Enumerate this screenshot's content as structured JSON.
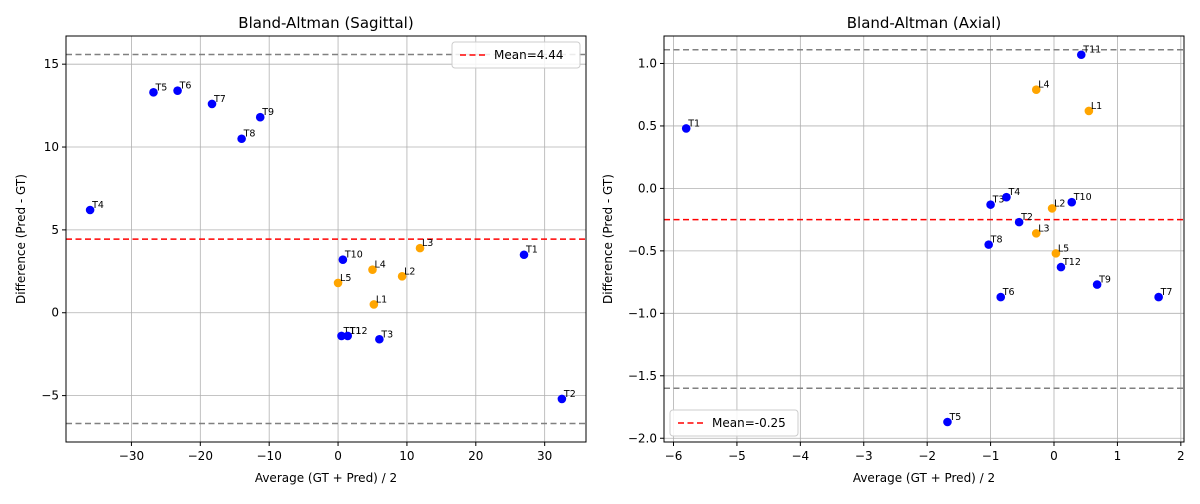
{
  "chart_data": [
    {
      "type": "scatter",
      "title": "Bland-Altman (Sagittal)",
      "xlabel": "Average (GT + Pred) / 2",
      "ylabel": "Difference (Pred - GT)",
      "xlim": [
        -39.5,
        36
      ],
      "ylim": [
        -7.8,
        16.7
      ],
      "xticks": [
        -30,
        -20,
        -10,
        0,
        10,
        20,
        30
      ],
      "yticks": [
        -5,
        0,
        5,
        10,
        15
      ],
      "grid": true,
      "legend": {
        "position": "upper-right",
        "label": "Mean=4.44"
      },
      "mean": 4.44,
      "loa_upper": 15.58,
      "loa_lower": -6.68,
      "colors": {
        "thoracic": "#0000ff",
        "lumbar": "#ffa500",
        "mean": "#ff0000",
        "loa": "#808080"
      },
      "points": [
        {
          "label": "T1",
          "x": 27.0,
          "y": 3.5,
          "group": "thoracic"
        },
        {
          "label": "T2",
          "x": 32.5,
          "y": -5.2,
          "group": "thoracic"
        },
        {
          "label": "T3",
          "x": 6.0,
          "y": -1.6,
          "group": "thoracic"
        },
        {
          "label": "T4",
          "x": -36.0,
          "y": 6.2,
          "group": "thoracic"
        },
        {
          "label": "T5",
          "x": -26.8,
          "y": 13.3,
          "group": "thoracic"
        },
        {
          "label": "T6",
          "x": -23.3,
          "y": 13.4,
          "group": "thoracic"
        },
        {
          "label": "T7",
          "x": -18.3,
          "y": 12.6,
          "group": "thoracic"
        },
        {
          "label": "T8",
          "x": -14.0,
          "y": 10.5,
          "group": "thoracic"
        },
        {
          "label": "T9",
          "x": -11.3,
          "y": 11.8,
          "group": "thoracic"
        },
        {
          "label": "T10",
          "x": 0.7,
          "y": 3.2,
          "group": "thoracic"
        },
        {
          "label": "T11",
          "x": 0.5,
          "y": -1.4,
          "group": "thoracic"
        },
        {
          "label": "T12",
          "x": 1.4,
          "y": -1.4,
          "group": "thoracic"
        },
        {
          "label": "L1",
          "x": 5.2,
          "y": 0.5,
          "group": "lumbar"
        },
        {
          "label": "L2",
          "x": 9.3,
          "y": 2.2,
          "group": "lumbar"
        },
        {
          "label": "L3",
          "x": 11.9,
          "y": 3.9,
          "group": "lumbar"
        },
        {
          "label": "L4",
          "x": 5.0,
          "y": 2.6,
          "group": "lumbar"
        },
        {
          "label": "L5",
          "x": 0.0,
          "y": 1.8,
          "group": "lumbar"
        }
      ]
    },
    {
      "type": "scatter",
      "title": "Bland-Altman (Axial)",
      "xlabel": "Average (GT + Pred) / 2",
      "ylabel": "Difference (Pred - GT)",
      "xlim": [
        -6.15,
        2.05
      ],
      "ylim": [
        -2.03,
        1.22
      ],
      "xticks": [
        -6,
        -5,
        -4,
        -3,
        -2,
        -1,
        0,
        1,
        2
      ],
      "yticks": [
        -2.0,
        -1.5,
        -1.0,
        -0.5,
        0.0,
        0.5,
        1.0
      ],
      "tick_labels_y": [
        "−2.0",
        "−1.5",
        "−1.0",
        "−0.5",
        "0.0",
        "0.5",
        "1.0"
      ],
      "tick_labels_x": [
        "−6",
        "−5",
        "−4",
        "−3",
        "−2",
        "−1",
        "0",
        "1",
        "2"
      ],
      "grid": true,
      "legend": {
        "position": "lower-left",
        "label": "Mean=-0.25"
      },
      "mean": -0.25,
      "loa_upper": 1.11,
      "loa_lower": -1.6,
      "colors": {
        "thoracic": "#0000ff",
        "lumbar": "#ffa500",
        "mean": "#ff0000",
        "loa": "#808080"
      },
      "points": [
        {
          "label": "T1",
          "x": -5.8,
          "y": 0.48,
          "group": "thoracic"
        },
        {
          "label": "T2",
          "x": -0.55,
          "y": -0.27,
          "group": "thoracic"
        },
        {
          "label": "T3",
          "x": -1.0,
          "y": -0.13,
          "group": "thoracic"
        },
        {
          "label": "T4",
          "x": -0.75,
          "y": -0.07,
          "group": "thoracic"
        },
        {
          "label": "T5",
          "x": -1.68,
          "y": -1.87,
          "group": "thoracic"
        },
        {
          "label": "T6",
          "x": -0.84,
          "y": -0.87,
          "group": "thoracic"
        },
        {
          "label": "T7",
          "x": 1.65,
          "y": -0.87,
          "group": "thoracic"
        },
        {
          "label": "T8",
          "x": -1.03,
          "y": -0.45,
          "group": "thoracic"
        },
        {
          "label": "T9",
          "x": 0.68,
          "y": -0.77,
          "group": "thoracic"
        },
        {
          "label": "T10",
          "x": 0.28,
          "y": -0.11,
          "group": "thoracic"
        },
        {
          "label": "T11",
          "x": 0.43,
          "y": 1.07,
          "group": "thoracic"
        },
        {
          "label": "T12",
          "x": 0.11,
          "y": -0.63,
          "group": "thoracic"
        },
        {
          "label": "L1",
          "x": 0.55,
          "y": 0.62,
          "group": "lumbar"
        },
        {
          "label": "L2",
          "x": -0.03,
          "y": -0.16,
          "group": "lumbar"
        },
        {
          "label": "L3",
          "x": -0.28,
          "y": -0.36,
          "group": "lumbar"
        },
        {
          "label": "L4",
          "x": -0.28,
          "y": 0.79,
          "group": "lumbar"
        },
        {
          "label": "L5",
          "x": 0.03,
          "y": -0.52,
          "group": "lumbar"
        }
      ]
    }
  ]
}
